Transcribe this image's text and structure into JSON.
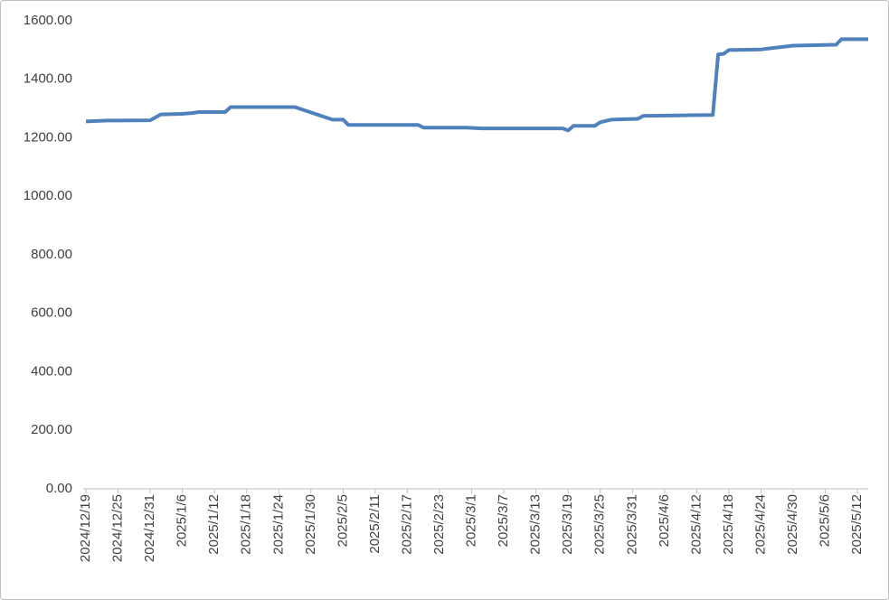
{
  "chart_data": {
    "type": "line",
    "x": [
      "2024/12/19",
      "2024/12/23",
      "2024/12/31",
      "2025/1/2",
      "2025/1/6",
      "2025/1/8",
      "2025/1/9",
      "2025/1/14",
      "2025/1/15",
      "2025/1/27",
      "2025/2/3",
      "2025/2/5",
      "2025/2/6",
      "2025/2/19",
      "2025/2/20",
      "2025/2/28",
      "2025/3/3",
      "2025/3/18",
      "2025/3/19",
      "2025/3/20",
      "2025/3/24",
      "2025/3/25",
      "2025/3/27",
      "2025/4/1",
      "2025/4/2",
      "2025/4/10",
      "2025/4/15",
      "2025/4/16",
      "2025/4/17",
      "2025/4/18",
      "2025/4/24",
      "2025/4/30",
      "2025/5/8",
      "2025/5/9",
      "2025/5/14"
    ],
    "series": [
      {
        "color": "#4f81bd",
        "values": [
          1256,
          1259,
          1260,
          1280,
          1282,
          1285,
          1288,
          1288,
          1305,
          1305,
          1262,
          1262,
          1244,
          1244,
          1235,
          1235,
          1232,
          1232,
          1225,
          1241,
          1241,
          1253,
          1262,
          1265,
          1275,
          1277,
          1278,
          1485,
          1487,
          1500,
          1502,
          1515,
          1518,
          1537,
          1537
        ]
      }
    ],
    "xlim": [
      "2024/12/19",
      "2025/5/14"
    ],
    "xticks": [
      "2024/12/19",
      "2024/12/25",
      "2024/12/31",
      "2025/1/6",
      "2025/1/12",
      "2025/1/18",
      "2025/1/24",
      "2025/1/30",
      "2025/2/5",
      "2025/2/11",
      "2025/2/17",
      "2025/2/23",
      "2025/3/1",
      "2025/3/7",
      "2025/3/13",
      "2025/3/19",
      "2025/3/25",
      "2025/3/31",
      "2025/4/6",
      "2025/4/12",
      "2025/4/18",
      "2025/4/24",
      "2025/4/30",
      "2025/5/6",
      "2025/5/12"
    ],
    "ylim": [
      0,
      1600
    ],
    "yticks": [
      {
        "value": 0,
        "label": "0.00"
      },
      {
        "value": 200,
        "label": "200.00"
      },
      {
        "value": 400,
        "label": "400.00"
      },
      {
        "value": 600,
        "label": "600.00"
      },
      {
        "value": 800,
        "label": "800.00"
      },
      {
        "value": 1000,
        "label": "1000.00"
      },
      {
        "value": 1200,
        "label": "1200.00"
      },
      {
        "value": 1400,
        "label": "1400.00"
      },
      {
        "value": 1600,
        "label": "1600.00"
      }
    ],
    "grid": false
  }
}
